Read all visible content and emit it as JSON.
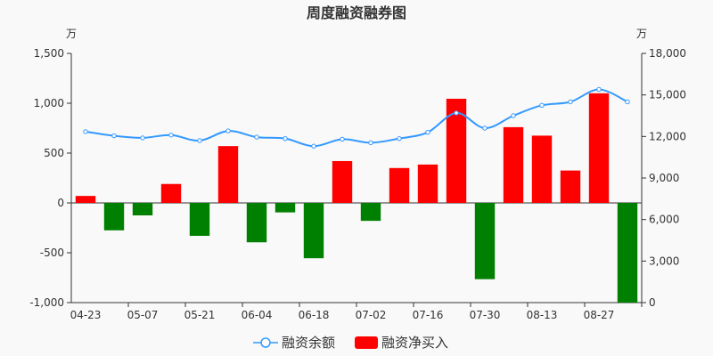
{
  "chart_data": {
    "type": "bar+line",
    "title": "周度融资融券图",
    "left_unit": "万",
    "right_unit": "万",
    "y_left": {
      "min": -1000,
      "max": 1500,
      "ticks": [
        -1000,
        -500,
        0,
        500,
        1000,
        1500
      ],
      "tick_labels": [
        "-1,000",
        "-500",
        "0",
        "500",
        "1,000",
        "1,500"
      ]
    },
    "y_right": {
      "min": 0,
      "max": 18000,
      "ticks": [
        0,
        3000,
        6000,
        9000,
        12000,
        15000,
        18000
      ],
      "tick_labels": [
        "0",
        "3,000",
        "6,000",
        "9,000",
        "12,000",
        "15,000",
        "18,000"
      ]
    },
    "x_tick_labels": [
      "04-23",
      "05-07",
      "05-21",
      "06-04",
      "06-18",
      "07-02",
      "07-16",
      "07-30",
      "08-13",
      "08-27"
    ],
    "categories": [
      "04-23",
      "04-30",
      "05-07",
      "05-14",
      "05-21",
      "05-28",
      "06-04",
      "06-11",
      "06-18",
      "06-25",
      "07-02",
      "07-09",
      "07-16",
      "07-23",
      "07-30",
      "08-06",
      "08-13",
      "08-20",
      "08-27",
      "09-03"
    ],
    "series": [
      {
        "name": "融资净买入",
        "kind": "bar",
        "axis": "left",
        "positive_color": "#ff0000",
        "negative_color": "#008000",
        "values": [
          70,
          -275,
          -125,
          190,
          -330,
          570,
          -395,
          -95,
          -555,
          420,
          -180,
          350,
          385,
          1045,
          -765,
          760,
          675,
          325,
          1100,
          -1000
        ]
      },
      {
        "name": "融资余额",
        "kind": "line",
        "axis": "right",
        "color": "#3399ff",
        "values": [
          12350,
          12050,
          11900,
          12100,
          11700,
          12400,
          11950,
          11850,
          11300,
          11800,
          11550,
          11850,
          12300,
          13700,
          12600,
          13500,
          14250,
          14500,
          15400,
          14500
        ]
      }
    ],
    "legend_position": "bottom",
    "grid": false
  }
}
